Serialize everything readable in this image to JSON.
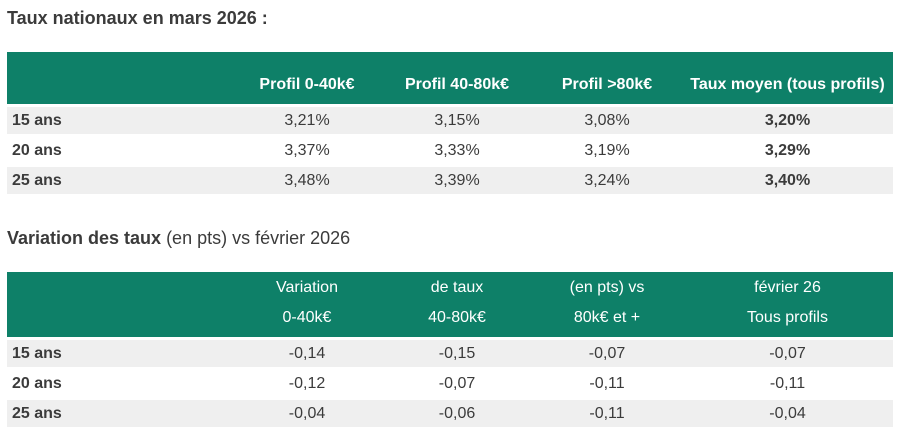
{
  "colors": {
    "header_green": "#0e8068",
    "row_alt_gray": "#efefef",
    "text_dark": "#3b3b3b",
    "header_text": "#ffffff"
  },
  "titles": {
    "table1": "Taux nationaux en mars 2026 :",
    "table2_bold": "Variation des taux",
    "table2_rest": " (en pts) vs février 2026"
  },
  "table1": {
    "columns": {
      "corner": "",
      "col1": "Profil 0-40k€",
      "col2": "Profil 40-80k€",
      "col3": "Profil >80k€",
      "col4": "Taux moyen (tous profils)"
    },
    "rows": [
      {
        "label": "15 ans",
        "values": [
          "3,21%",
          "3,15%",
          "3,08%",
          "3,20%"
        ]
      },
      {
        "label": "20 ans",
        "values": [
          "3,37%",
          "3,33%",
          "3,19%",
          "3,29%"
        ]
      },
      {
        "label": "25 ans",
        "values": [
          "3,48%",
          "3,39%",
          "3,24%",
          "3,40%"
        ]
      }
    ]
  },
  "table2": {
    "columns_line1": {
      "corner": "",
      "col1": "Variation",
      "col2": "de taux",
      "col3": "(en pts) vs",
      "col4": "février 26"
    },
    "columns_line2": {
      "col1": "0-40k€",
      "col2": "40-80k€",
      "col3": "80k€ et +",
      "col4": "Tous profils"
    },
    "rows": [
      {
        "label": "15 ans",
        "values": [
          "-0,14",
          "-0,15",
          "-0,07",
          "-0,07"
        ]
      },
      {
        "label": "20 ans",
        "values": [
          "-0,12",
          "-0,07",
          "-0,11",
          "-0,11"
        ]
      },
      {
        "label": "25 ans",
        "values": [
          "-0,04",
          "-0,06",
          "-0,11",
          "-0,04"
        ]
      }
    ]
  }
}
